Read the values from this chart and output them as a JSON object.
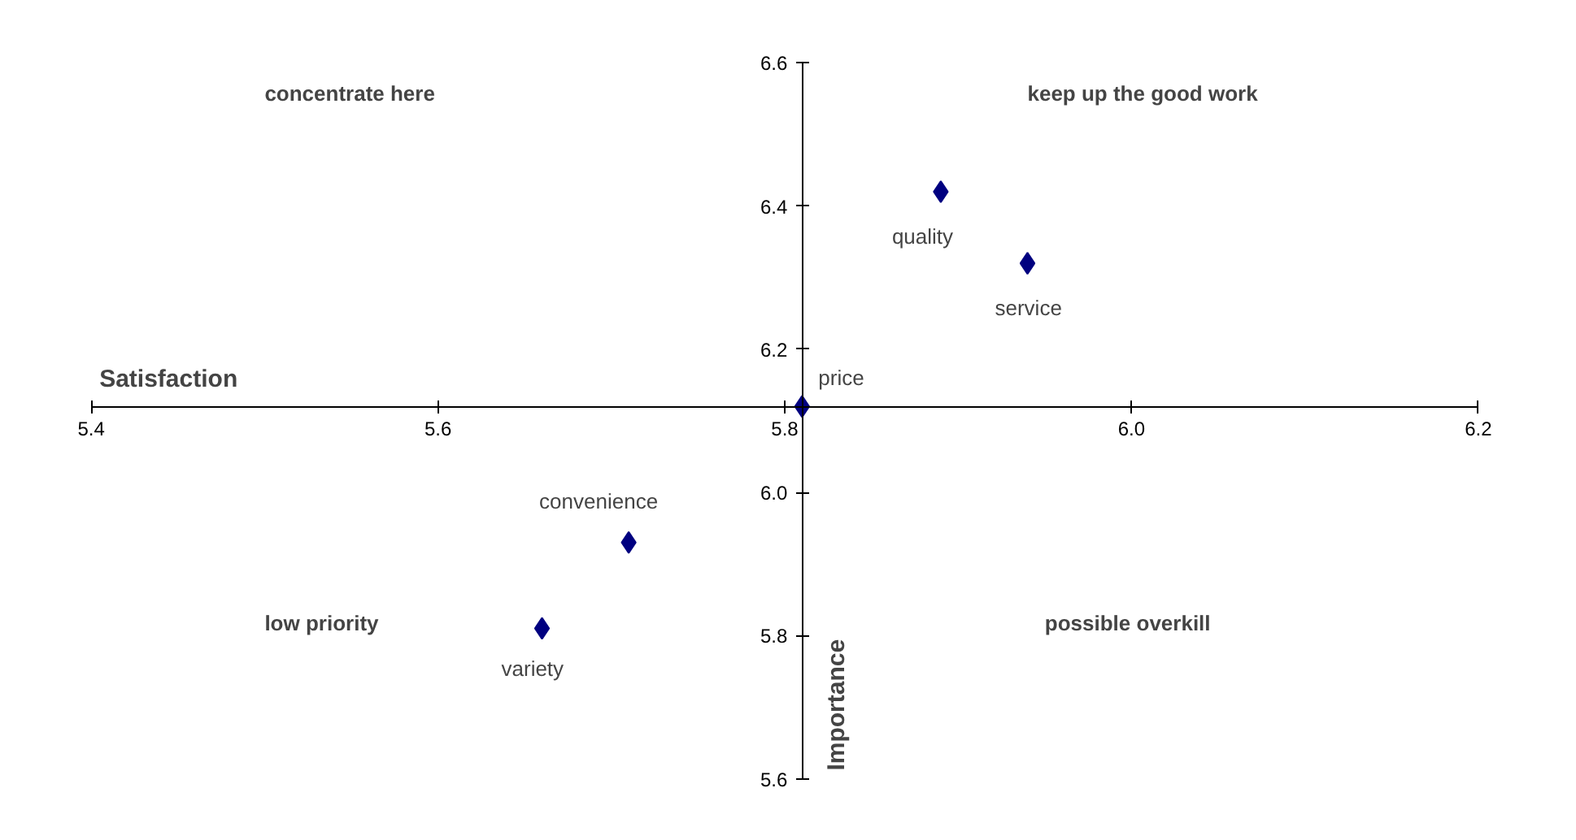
{
  "chart_data": {
    "type": "scatter",
    "xlabel": "Satisfaction",
    "ylabel": "Importance",
    "x": [
      5.89,
      5.94,
      5.81,
      5.71,
      5.66
    ],
    "series": [
      {
        "color": "#000080",
        "values": [
          6.42,
          6.32,
          6.12,
          5.93,
          5.81
        ]
      }
    ],
    "marker": "diamond",
    "grid": false,
    "xlim": [
      5.4,
      6.2
    ],
    "ylim": [
      5.6,
      6.6
    ],
    "xticks": [
      5.4,
      5.6,
      5.8,
      {
        "value": 6,
        "label": "6.0"
      },
      6.2
    ],
    "yticks": [
      5.6,
      5.8,
      {
        "value": 6,
        "label": "6.0"
      },
      6.2,
      6.4,
      6.6
    ],
    "annotations": [
      {
        "text": "quality",
        "x": 5.89,
        "y": 6.42
      },
      {
        "text": "service",
        "x": 5.94,
        "y": 6.32
      },
      {
        "text": "price",
        "x": 5.81,
        "y": 6.12
      },
      {
        "text": "convenience",
        "x": 5.71,
        "y": 5.93
      },
      {
        "text": "variety",
        "x": 5.66,
        "y": 5.81
      },
      "concentrate here",
      "keep up the good work",
      "low priority",
      "possible overkill"
    ]
  }
}
